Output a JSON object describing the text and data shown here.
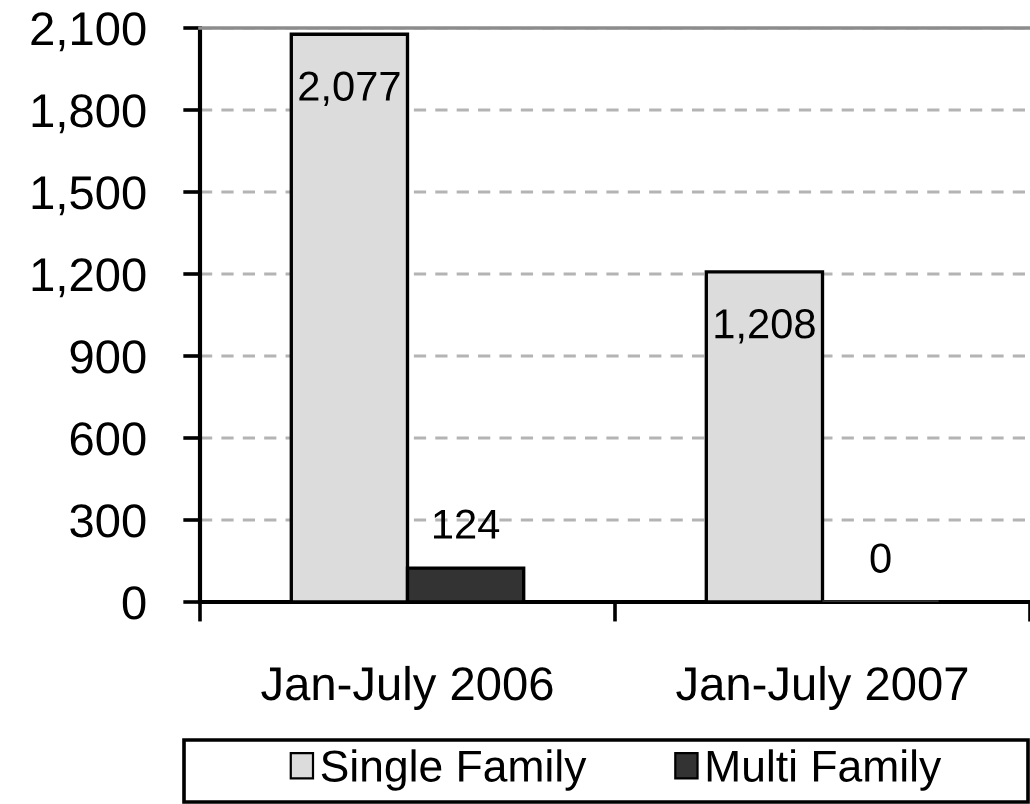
{
  "chart_data": {
    "type": "bar",
    "categories": [
      "Jan-July 2006",
      "Jan-July 2007"
    ],
    "series": [
      {
        "name": "Single Family",
        "color": "#dcdcdc",
        "values": [
          2077,
          1208
        ],
        "value_labels": [
          "2,077",
          "1,208"
        ]
      },
      {
        "name": "Multi Family",
        "color": "#333333",
        "values": [
          124,
          0
        ],
        "value_labels": [
          "124",
          "0"
        ]
      }
    ],
    "ylim": [
      0,
      2100
    ],
    "yticks": [
      0,
      300,
      600,
      900,
      {
        "value": 1200,
        "label": "1,200"
      },
      {
        "value": 1500,
        "label": "1,500"
      },
      {
        "value": 1800,
        "label": "1,800"
      },
      {
        "value": 2100,
        "label": "2,100"
      }
    ],
    "grid": "y",
    "legend": "bottom"
  }
}
